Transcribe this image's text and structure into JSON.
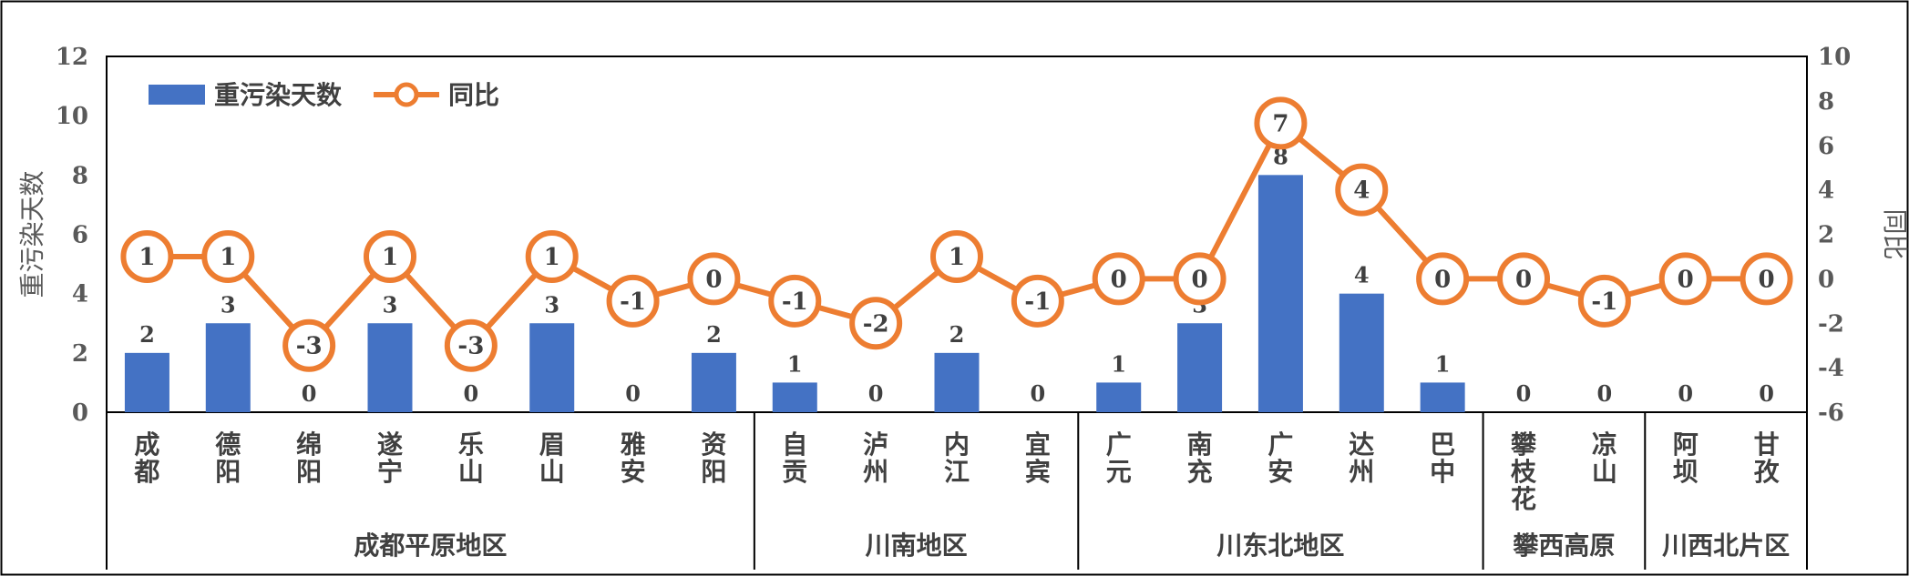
{
  "chart_data": {
    "type": "bar",
    "categories": [
      "成都",
      "德阳",
      "绵阳",
      "遂宁",
      "乐山",
      "眉山",
      "雅安",
      "资阳",
      "自贡",
      "泸州",
      "内江",
      "宜宾",
      "广元",
      "南充",
      "广安",
      "达州",
      "巴中",
      "攀枝花",
      "凉山",
      "阿坝",
      "甘孜"
    ],
    "category_display": [
      [
        "成",
        "都"
      ],
      [
        "德",
        "阳"
      ],
      [
        "绵",
        "阳"
      ],
      [
        "遂",
        "宁"
      ],
      [
        "乐",
        "山"
      ],
      [
        "眉",
        "山"
      ],
      [
        "雅",
        "安"
      ],
      [
        "资",
        "阳"
      ],
      [
        "自",
        "贡"
      ],
      [
        "泸",
        "州"
      ],
      [
        "内",
        "江"
      ],
      [
        "宜",
        "宾"
      ],
      [
        "广",
        "元"
      ],
      [
        "南",
        "充"
      ],
      [
        "广",
        "安"
      ],
      [
        "达",
        "州"
      ],
      [
        "巴",
        "中"
      ],
      [
        "攀",
        "枝",
        "花"
      ],
      [
        "凉",
        "山"
      ],
      [
        "阿",
        "坝"
      ],
      [
        "甘",
        "孜"
      ]
    ],
    "regions": [
      {
        "name": "成都平原地区",
        "start": 0,
        "end": 7
      },
      {
        "name": "川南地区",
        "start": 8,
        "end": 11
      },
      {
        "name": "川东北地区",
        "start": 12,
        "end": 16
      },
      {
        "name": "攀西高原",
        "start": 17,
        "end": 18
      },
      {
        "name": "川西北片区",
        "start": 19,
        "end": 20
      }
    ],
    "series": [
      {
        "name": "重污染天数",
        "type": "bar",
        "axis": "left",
        "color": "#4472C4",
        "values": [
          2,
          3,
          0,
          3,
          0,
          3,
          0,
          2,
          1,
          0,
          2,
          0,
          1,
          3,
          8,
          4,
          1,
          0,
          0,
          0,
          0
        ]
      },
      {
        "name": "同比",
        "type": "line",
        "axis": "right",
        "color": "#ED7D31",
        "values": [
          1,
          1,
          -3,
          1,
          -3,
          1,
          -1,
          0,
          -1,
          -2,
          1,
          -1,
          0,
          0,
          7,
          4,
          0,
          0,
          -1,
          0,
          0
        ]
      }
    ],
    "ylabel": "重污染天数",
    "y2label": "同比",
    "ylim": [
      0,
      12
    ],
    "y2lim": [
      -6,
      10
    ],
    "y_ticks": [
      "0",
      "2",
      "4",
      "6",
      "8",
      "10",
      "12"
    ],
    "y2_ticks": [
      "-6",
      "-4",
      "-2",
      "0",
      "2",
      "4",
      "6",
      "8",
      "10"
    ],
    "legend_position": "top-left",
    "grid": false
  }
}
